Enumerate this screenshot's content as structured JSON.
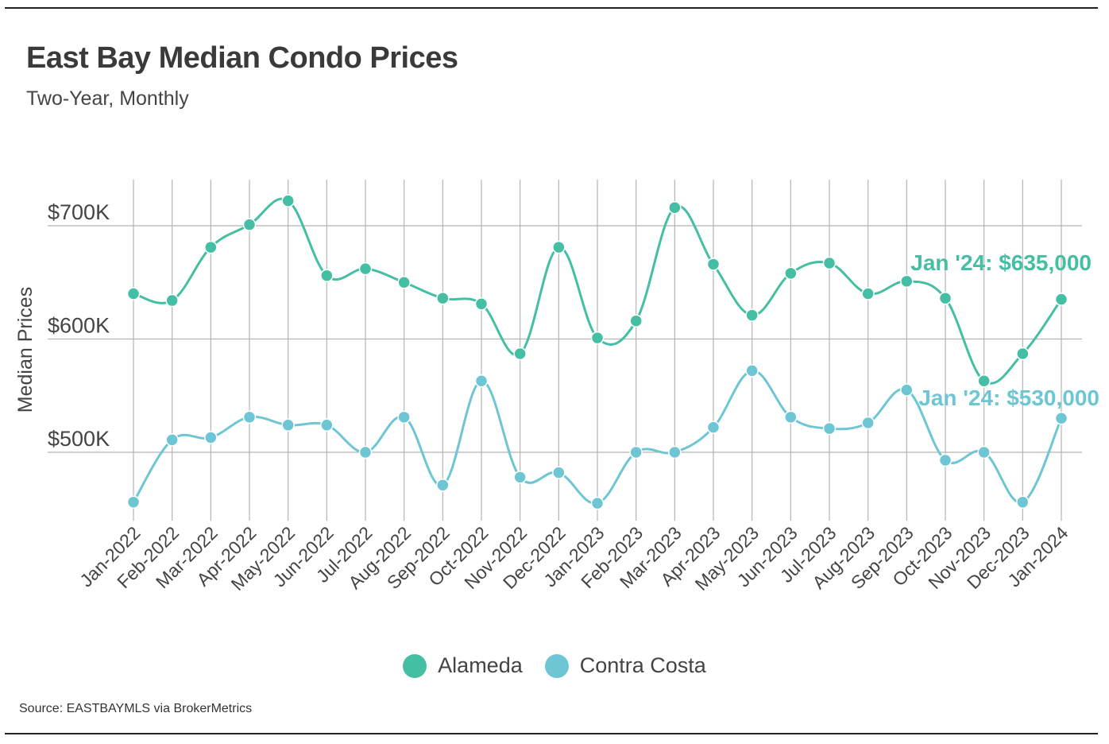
{
  "header": {
    "title": "East Bay Median Condo Prices",
    "subtitle": "Two-Year, Monthly"
  },
  "footer": {
    "source": "Source:  EASTBAYMLS via BrokerMetrics"
  },
  "colors": {
    "alameda": "#45bfa4",
    "contra_costa": "#6ec6d4",
    "grid": "#b5b5b5",
    "axis_text": "#555555"
  },
  "chart_data": {
    "type": "line",
    "title": "East Bay Median Condo Prices",
    "subtitle": "Two-Year, Monthly",
    "xlabel": "",
    "ylabel": "Median Prices",
    "ylim": [
      440000,
      740000
    ],
    "yticks": [
      500000,
      600000,
      700000
    ],
    "ytick_labels": [
      "$500K",
      "$600K",
      "$700K"
    ],
    "categories": [
      "Jan-2022",
      "Feb-2022",
      "Mar-2022",
      "Apr-2022",
      "May-2022",
      "Jun-2022",
      "Jul-2022",
      "Aug-2022",
      "Sep-2022",
      "Oct-2022",
      "Nov-2022",
      "Dec-2022",
      "Jan-2023",
      "Feb-2023",
      "Mar-2023",
      "Apr-2023",
      "May-2023",
      "Jun-2023",
      "Jul-2023",
      "Aug-2023",
      "Sep-2023",
      "Oct-2023",
      "Nov-2023",
      "Dec-2023",
      "Jan-2024"
    ],
    "series": [
      {
        "name": "Alameda",
        "color": "#45bfa4",
        "values": [
          640000,
          634000,
          681000,
          701000,
          722000,
          656000,
          662000,
          650000,
          636000,
          631000,
          587000,
          681000,
          601000,
          616000,
          716000,
          666000,
          621000,
          658000,
          667000,
          640000,
          651000,
          636000,
          563000,
          587000,
          635000
        ],
        "end_label": "Jan '24: $635,000"
      },
      {
        "name": "Contra Costa",
        "color": "#6ec6d4",
        "values": [
          456000,
          511000,
          513000,
          531000,
          524000,
          524000,
          500000,
          531000,
          471000,
          563000,
          478000,
          482000,
          455000,
          500000,
          500000,
          522000,
          572000,
          531000,
          521000,
          526000,
          555000,
          493000,
          500000,
          456000,
          530000
        ],
        "end_label": "Jan '24: $530,000"
      }
    ],
    "legend": [
      "Alameda",
      "Contra Costa"
    ],
    "legend_position": "bottom-center",
    "grid": true
  }
}
